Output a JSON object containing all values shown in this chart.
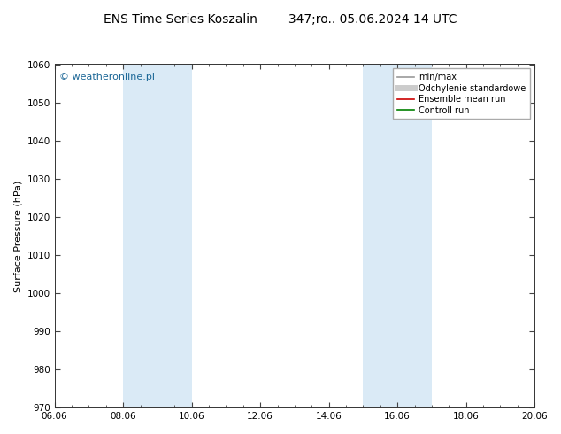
{
  "title": "ENS Time Series Koszalin        347;ro.. 05.06.2024 14 UTC",
  "ylabel": "Surface Pressure (hPa)",
  "xlim": [
    0,
    14
  ],
  "ylim": [
    970,
    1060
  ],
  "yticks": [
    970,
    980,
    990,
    1000,
    1010,
    1020,
    1030,
    1040,
    1050,
    1060
  ],
  "xtick_labels": [
    "06.06",
    "08.06",
    "10.06",
    "12.06",
    "14.06",
    "16.06",
    "18.06",
    "20.06"
  ],
  "xtick_positions": [
    0,
    2,
    4,
    6,
    8,
    10,
    12,
    14
  ],
  "shaded_bands": [
    {
      "xmin": 2,
      "xmax": 4,
      "color": "#daeaf6"
    },
    {
      "xmin": 9,
      "xmax": 11,
      "color": "#daeaf6"
    }
  ],
  "watermark": "© weatheronline.pl",
  "watermark_color": "#1a6696",
  "legend_items": [
    {
      "label": "min/max",
      "color": "#999999",
      "lw": 1.2
    },
    {
      "label": "Odchylenie standardowe",
      "color": "#cccccc",
      "lw": 5
    },
    {
      "label": "Ensemble mean run",
      "color": "#cc0000",
      "lw": 1.2
    },
    {
      "label": "Controll run",
      "color": "#008000",
      "lw": 1.2
    }
  ],
  "bg_color": "#ffffff",
  "plot_bg_color": "#ffffff",
  "title_fontsize": 10,
  "label_fontsize": 8,
  "tick_fontsize": 7.5
}
